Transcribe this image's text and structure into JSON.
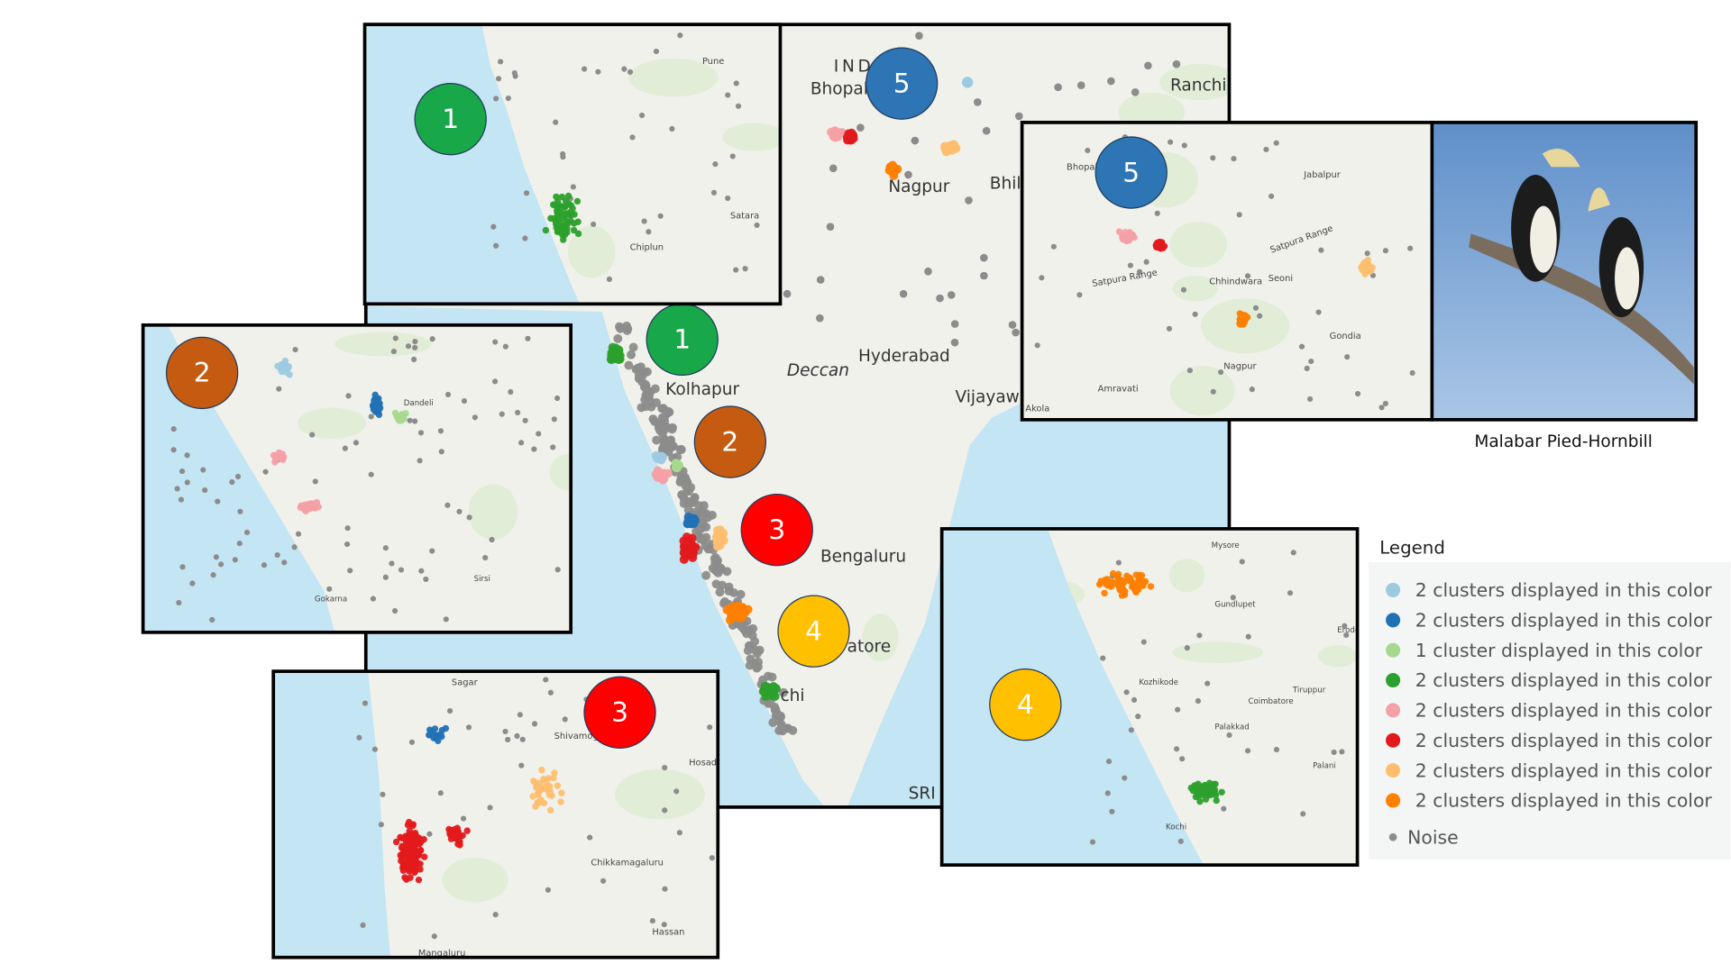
{
  "main_map": {
    "labels": [
      "IND",
      "Bhopal",
      "Ranchi",
      "Nagpur",
      "Bhil",
      "Hyderabad",
      "Deccan",
      "Kolhapur",
      "Vijayawa",
      "Bengaluru",
      "atore",
      "chi",
      "SRI"
    ],
    "badges": [
      {
        "number": "1",
        "color": "#18a84a"
      },
      {
        "number": "2",
        "color": "#c55a11"
      },
      {
        "number": "3",
        "color": "#ff0000"
      },
      {
        "number": "4",
        "color": "#ffc000"
      },
      {
        "number": "5",
        "color": "#2e75b6"
      }
    ]
  },
  "insets": [
    {
      "badge": {
        "number": "1",
        "color": "#18a84a"
      },
      "labels": [
        "Pune",
        "Satara",
        "Chiplun"
      ]
    },
    {
      "badge": {
        "number": "2",
        "color": "#c55a11"
      },
      "labels": [
        "Dandeli",
        "Sirsi",
        "Gokarna"
      ]
    },
    {
      "badge": {
        "number": "3",
        "color": "#ff0000"
      },
      "labels": [
        "Sagar",
        "Shivamogga",
        "Hosadurg",
        "Chikkamagaluru",
        "Hassan",
        "Mangaluru"
      ]
    },
    {
      "badge": {
        "number": "4",
        "color": "#ffc000"
      },
      "labels": [
        "Mysore",
        "Gundlupet",
        "Erode",
        "Kozhikode",
        "Tiruppur",
        "Coimbatore",
        "Palakkad",
        "Palani",
        "Kochi"
      ]
    },
    {
      "badge": {
        "number": "5",
        "color": "#2e75b6"
      },
      "labels": [
        "Bhopal",
        "Jabalpur",
        "Satpura Range",
        "Satpura Range",
        "Chhindwara",
        "Seoni",
        "Gondia",
        "Nagpur",
        "Amravati",
        "Akola"
      ]
    }
  ],
  "photo": {
    "caption": "Malabar Pied-Hornbill"
  },
  "legend": {
    "title": "Legend",
    "entries": [
      {
        "label": "2 clusters displayed in this color",
        "color": "#9ecae1"
      },
      {
        "label": "2 clusters displayed in this color",
        "color": "#2171b5"
      },
      {
        "label": "1 cluster displayed in this color",
        "color": "#a6d98f"
      },
      {
        "label": "2 clusters displayed in this color",
        "color": "#2ca02c"
      },
      {
        "label": "2 clusters displayed in this color",
        "color": "#f4a0a6"
      },
      {
        "label": "2 clusters displayed in this color",
        "color": "#e31a1c"
      },
      {
        "label": "2 clusters displayed in this color",
        "color": "#fdbf6f"
      },
      {
        "label": "2 clusters displayed in this color",
        "color": "#ff7f00"
      },
      {
        "label": "Noise",
        "color": "#8c8c8c"
      }
    ]
  }
}
